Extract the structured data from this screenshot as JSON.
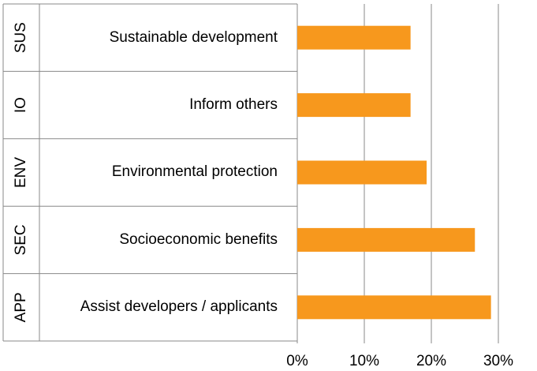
{
  "chart_data": {
    "type": "bar",
    "orientation": "horizontal",
    "groups": [
      "SUS",
      "IO",
      "ENV",
      "SEC",
      "APP"
    ],
    "categories": [
      "Sustainable development",
      "Inform others",
      "Environmental protection",
      "Socioeconomic benefits",
      "Assist developers / applicants"
    ],
    "values": [
      16.9,
      16.9,
      19.3,
      26.5,
      28.9
    ],
    "color": "#F7981D",
    "xlim": [
      0,
      30
    ],
    "xticks": [
      {
        "value": 0,
        "label": "0%"
      },
      {
        "value": 10,
        "label": "10%"
      },
      {
        "value": 20,
        "label": "20%"
      },
      {
        "value": 30,
        "label": "30%"
      }
    ],
    "grid": true
  }
}
